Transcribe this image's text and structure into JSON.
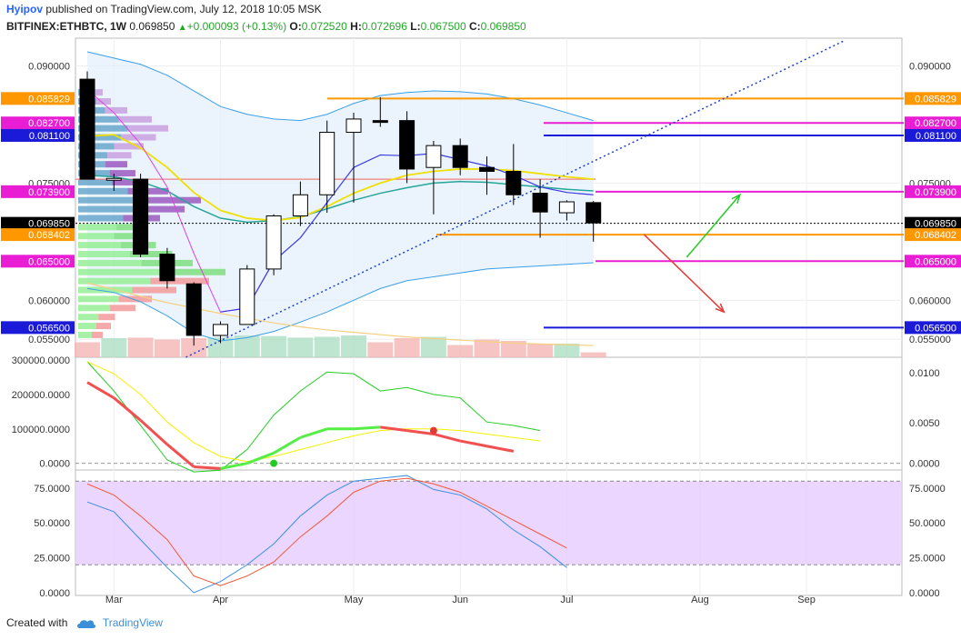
{
  "header": {
    "author": "Hyipov",
    "published_text": "published on TradingView.com, July 12, 2018 10:05 MSK",
    "symbol": "BITFINEX:ETHBTC, 1W",
    "last": "0.069850",
    "change": "+0.000093 (+0.13%)",
    "o_label": "O:",
    "o_value": "0.072520",
    "h_label": "H:",
    "h_value": "0.072696",
    "l_label": "L:",
    "l_value": "0.067500",
    "c_label": "C:",
    "c_value": "0.069850"
  },
  "footer": {
    "created_with": "Created with",
    "brand": "TradingView"
  },
  "colors": {
    "up": "#22a827",
    "orange": "#ff9800",
    "magenta": "#e91ed4",
    "blue": "#1a1ad8",
    "ema_fast": "#3a3ae0",
    "ema_slow": "#26a69a",
    "yellow": "#f0e000",
    "bb": "#3aa0e8",
    "red": "#e53935",
    "green_arrow": "#22cc22"
  },
  "chart_data": [
    {
      "type": "candlestick",
      "symbol": "BITFINEX:ETHBTC",
      "timeframe": "1W",
      "x_tick_labels": [
        "Mar",
        "Apr",
        "May",
        "Jun",
        "Jul",
        "Aug",
        "Sep"
      ],
      "y_tick_labels": [
        "0.090000",
        "0.075000",
        "0.060000",
        "0.055000"
      ],
      "ylim": [
        0.0527,
        0.0932
      ],
      "candles": [
        {
          "o": 0.0883,
          "h": 0.0893,
          "l": 0.0755,
          "c": 0.0755
        },
        {
          "o": 0.0755,
          "h": 0.0762,
          "l": 0.074,
          "c": 0.0756
        },
        {
          "o": 0.0755,
          "h": 0.0762,
          "l": 0.0655,
          "c": 0.0659
        },
        {
          "o": 0.0659,
          "h": 0.0667,
          "l": 0.0615,
          "c": 0.0625
        },
        {
          "o": 0.0621,
          "h": 0.0623,
          "l": 0.0542,
          "c": 0.0555
        },
        {
          "o": 0.0555,
          "h": 0.0573,
          "l": 0.0545,
          "c": 0.0569
        },
        {
          "o": 0.0569,
          "h": 0.0645,
          "l": 0.0569,
          "c": 0.064
        },
        {
          "o": 0.064,
          "h": 0.071,
          "l": 0.0632,
          "c": 0.0708
        },
        {
          "o": 0.0708,
          "h": 0.0752,
          "l": 0.0695,
          "c": 0.0735
        },
        {
          "o": 0.0735,
          "h": 0.083,
          "l": 0.0712,
          "c": 0.0815
        },
        {
          "o": 0.0815,
          "h": 0.084,
          "l": 0.0725,
          "c": 0.0832
        },
        {
          "o": 0.083,
          "h": 0.086,
          "l": 0.0822,
          "c": 0.0828
        },
        {
          "o": 0.083,
          "h": 0.0842,
          "l": 0.075,
          "c": 0.0768
        },
        {
          "o": 0.077,
          "h": 0.0804,
          "l": 0.071,
          "c": 0.0798
        },
        {
          "o": 0.0798,
          "h": 0.0807,
          "l": 0.076,
          "c": 0.077
        },
        {
          "o": 0.077,
          "h": 0.0784,
          "l": 0.0735,
          "c": 0.0765
        },
        {
          "o": 0.0765,
          "h": 0.08,
          "l": 0.0722,
          "c": 0.0735
        },
        {
          "o": 0.0737,
          "h": 0.0755,
          "l": 0.068,
          "c": 0.0713
        },
        {
          "o": 0.0712,
          "h": 0.0728,
          "l": 0.0702,
          "c": 0.0726
        },
        {
          "o": 0.0725,
          "h": 0.0727,
          "l": 0.0675,
          "c": 0.0699
        }
      ],
      "volume_relative": [
        0.55,
        0.7,
        0.72,
        0.65,
        0.7,
        0.72,
        0.8,
        0.78,
        0.72,
        0.75,
        0.8,
        0.55,
        0.7,
        0.75,
        0.45,
        0.65,
        0.6,
        0.5,
        0.5,
        0.18
      ],
      "horizontal_levels": [
        {
          "value": "0.085829",
          "color": "#ff9800"
        },
        {
          "value": "0.082700",
          "color": "#e91ed4"
        },
        {
          "value": "0.081100",
          "color": "#1a1ad8"
        },
        {
          "value": "0.073900",
          "color": "#e91ed4"
        },
        {
          "value": "0.069850",
          "color": "#000000"
        },
        {
          "value": "0.068402",
          "color": "#ff9800"
        },
        {
          "value": "0.065000",
          "color": "#e91ed4"
        },
        {
          "value": "0.056500",
          "color": "#1a1ad8"
        }
      ],
      "ema_fast": [
        0.087,
        0.084,
        0.08,
        0.0745,
        0.066,
        0.0585,
        0.059,
        0.065,
        0.068,
        0.0725,
        0.077,
        0.0786,
        0.0785,
        0.0788,
        0.078,
        0.0772,
        0.076,
        0.0745,
        0.0738,
        0.0735
      ],
      "ema_slow": [
        0.076,
        0.0758,
        0.0752,
        0.074,
        0.072,
        0.0705,
        0.07,
        0.0702,
        0.0707,
        0.0717,
        0.0728,
        0.0737,
        0.0744,
        0.075,
        0.0752,
        0.0751,
        0.0748,
        0.0745,
        0.0742,
        0.074
      ],
      "sma_yellow": [
        0.081,
        0.0812,
        0.0795,
        0.077,
        0.0738,
        0.0715,
        0.0705,
        0.0702,
        0.0706,
        0.072,
        0.0737,
        0.075,
        0.076,
        0.0765,
        0.0768,
        0.0768,
        0.0766,
        0.0762,
        0.0758,
        0.0755
      ],
      "sma_long": [
        0.0622,
        0.0614,
        0.0605,
        0.0597,
        0.059,
        0.0583,
        0.0577,
        0.0571,
        0.0566,
        0.0562,
        0.0559,
        0.0556,
        0.0553,
        0.0551,
        0.0549,
        0.0547,
        0.0545,
        0.0544,
        0.0543,
        0.0542
      ],
      "bb_upper": [
        0.0918,
        0.091,
        0.0902,
        0.0888,
        0.0868,
        0.0848,
        0.0838,
        0.0832,
        0.083,
        0.0838,
        0.0852,
        0.0862,
        0.0866,
        0.0868,
        0.0867,
        0.0864,
        0.0858,
        0.085,
        0.084,
        0.083
      ],
      "bb_lower": [
        0.0615,
        0.061,
        0.0598,
        0.058,
        0.0558,
        0.0548,
        0.0552,
        0.056,
        0.0572,
        0.0585,
        0.06,
        0.0615,
        0.0625,
        0.063,
        0.0635,
        0.064,
        0.0642,
        0.0644,
        0.0646,
        0.0648
      ],
      "trendline": {
        "from": {
          "week": 3.7,
          "value": 0.0527
        },
        "to": {
          "week": 28.4,
          "value": 0.0932
        }
      },
      "projections": [
        {
          "from": {
            "week": 20.9,
            "value": 0.0684
          },
          "to": {
            "week": 23.9,
            "value": 0.0585
          },
          "color": "#e53935"
        },
        {
          "from": {
            "week": 22.5,
            "value": 0.0655
          },
          "to": {
            "week": 24.5,
            "value": 0.0735
          },
          "color": "#22cc22"
        }
      ]
    },
    {
      "type": "line",
      "name": "oscillator",
      "y_left_tick_labels": [
        "300000.0000",
        "200000.0000",
        "100000.0000",
        "0.0000"
      ],
      "y_right_tick_labels": [
        "0.0100",
        "0.0050",
        "0.0000"
      ],
      "ylim": [
        -22000,
        300000
      ],
      "series": [
        {
          "values": [
            295000,
            210000,
            110000,
            10000,
            -25000,
            -20000,
            40000,
            140000,
            210000,
            265000,
            260000,
            210000,
            220000,
            200000,
            190000,
            120000,
            110000,
            95000
          ]
        },
        {
          "values": [
            295000,
            260000,
            200000,
            120000,
            60000,
            20000,
            5000,
            20000,
            40000,
            60000,
            80000,
            95000,
            100000,
            100000,
            95000,
            85000,
            75000,
            65000
          ]
        },
        {
          "values": [
            235000,
            190000,
            125000,
            55000,
            -10000,
            -15000,
            0,
            30000,
            75000,
            100000,
            100000,
            105000,
            95000,
            85000,
            65000,
            50000,
            35000
          ]
        }
      ],
      "markers": [
        {
          "index": 7,
          "value": 0,
          "color": "#22cc22"
        },
        {
          "index": 13,
          "value": 95000,
          "color": "#e53935"
        }
      ]
    },
    {
      "type": "line",
      "name": "stochastic",
      "y_left_tick_labels": [
        "75.0000",
        "50.0000",
        "25.0000",
        "0.0000"
      ],
      "y_right_tick_labels": [
        "75.0000",
        "50.0000",
        "25.0000",
        "0.0000"
      ],
      "ylim": [
        -2,
        86
      ],
      "band": [
        20,
        80
      ],
      "series": [
        {
          "values": [
            65,
            58,
            38,
            18,
            0,
            8,
            20,
            35,
            55,
            70,
            80,
            82,
            84,
            74,
            70,
            60,
            45,
            33,
            18
          ]
        },
        {
          "values": [
            78,
            70,
            55,
            38,
            12,
            5,
            12,
            22,
            40,
            55,
            72,
            80,
            82,
            78,
            72,
            62,
            52,
            42,
            32
          ]
        }
      ]
    }
  ]
}
